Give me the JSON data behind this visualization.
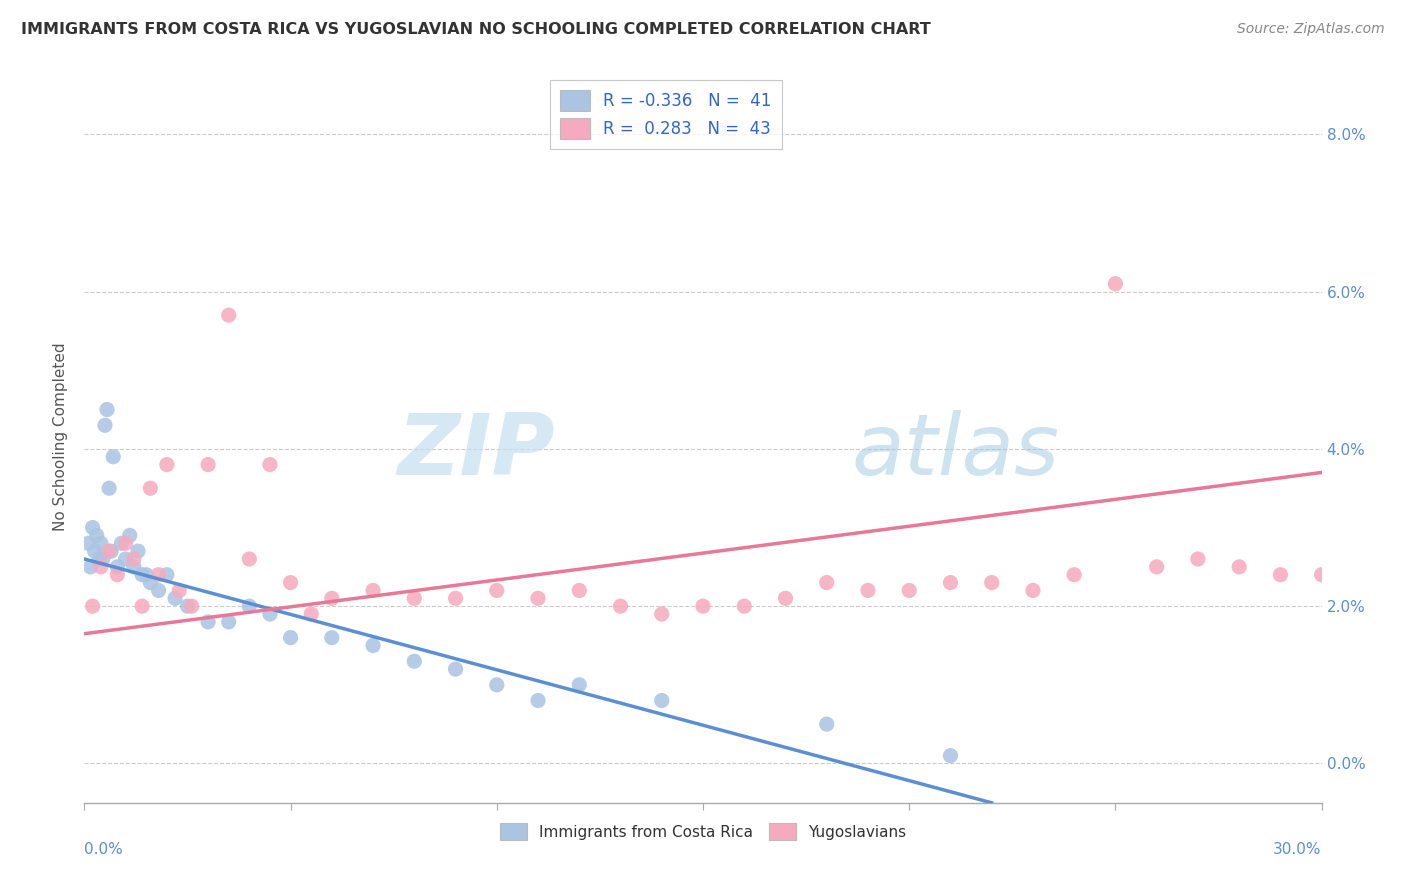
{
  "title": "IMMIGRANTS FROM COSTA RICA VS YUGOSLAVIAN NO SCHOOLING COMPLETED CORRELATION CHART",
  "source": "Source: ZipAtlas.com",
  "ylabel": "No Schooling Completed",
  "ytick_vals": [
    0.0,
    2.0,
    4.0,
    6.0,
    8.0
  ],
  "xlim": [
    0.0,
    30.0
  ],
  "ylim": [
    -0.5,
    8.8
  ],
  "ymin_display": 0.0,
  "ymax_display": 8.0,
  "legend_blue_r": "-0.336",
  "legend_blue_n": "41",
  "legend_pink_r": "0.283",
  "legend_pink_n": "43",
  "blue_color": "#aac4e2",
  "pink_color": "#f5aabf",
  "blue_line_color": "#5b8fd4",
  "pink_line_color": "#e87898",
  "watermark_zip": "ZIP",
  "watermark_atlas": "atlas",
  "blue_line_x0": 0.0,
  "blue_line_y0": 2.6,
  "blue_line_x1": 22.0,
  "blue_line_y1": -0.5,
  "pink_line_x0": 0.0,
  "pink_line_y0": 1.65,
  "pink_line_x1": 30.0,
  "pink_line_y1": 3.7,
  "blue_x": [
    0.1,
    0.15,
    0.2,
    0.25,
    0.3,
    0.35,
    0.4,
    0.45,
    0.5,
    0.55,
    0.6,
    0.65,
    0.7,
    0.8,
    0.9,
    1.0,
    1.1,
    1.2,
    1.3,
    1.4,
    1.5,
    1.6,
    1.8,
    2.0,
    2.2,
    2.5,
    3.0,
    3.5,
    4.0,
    4.5,
    5.0,
    6.0,
    7.0,
    8.0,
    9.0,
    10.0,
    11.0,
    12.0,
    14.0,
    18.0,
    21.0
  ],
  "blue_y": [
    2.8,
    2.5,
    3.0,
    2.7,
    2.9,
    2.6,
    2.8,
    2.6,
    4.3,
    4.5,
    3.5,
    2.7,
    3.9,
    2.5,
    2.8,
    2.6,
    2.9,
    2.5,
    2.7,
    2.4,
    2.4,
    2.3,
    2.2,
    2.4,
    2.1,
    2.0,
    1.8,
    1.8,
    2.0,
    1.9,
    1.6,
    1.6,
    1.5,
    1.3,
    1.2,
    1.0,
    0.8,
    1.0,
    0.8,
    0.5,
    0.1
  ],
  "pink_x": [
    0.2,
    0.4,
    0.6,
    0.8,
    1.0,
    1.2,
    1.4,
    1.6,
    1.8,
    2.0,
    2.3,
    2.6,
    3.0,
    3.5,
    4.0,
    4.5,
    5.0,
    5.5,
    6.0,
    7.0,
    8.0,
    9.0,
    10.0,
    11.0,
    12.0,
    13.0,
    14.0,
    16.0,
    18.0,
    20.0,
    22.0,
    24.0,
    25.0,
    26.0,
    28.0,
    29.0,
    15.0,
    17.0,
    19.0,
    21.0,
    23.0,
    27.0,
    30.0
  ],
  "pink_y": [
    2.0,
    2.5,
    2.7,
    2.4,
    2.8,
    2.6,
    2.0,
    3.5,
    2.4,
    3.8,
    2.2,
    2.0,
    3.8,
    5.7,
    2.6,
    3.8,
    2.3,
    1.9,
    2.1,
    2.2,
    2.1,
    2.1,
    2.2,
    2.1,
    2.2,
    2.0,
    1.9,
    2.0,
    2.3,
    2.2,
    2.3,
    2.4,
    6.1,
    2.5,
    2.5,
    2.4,
    2.0,
    2.1,
    2.2,
    2.3,
    2.2,
    2.6,
    2.4
  ]
}
